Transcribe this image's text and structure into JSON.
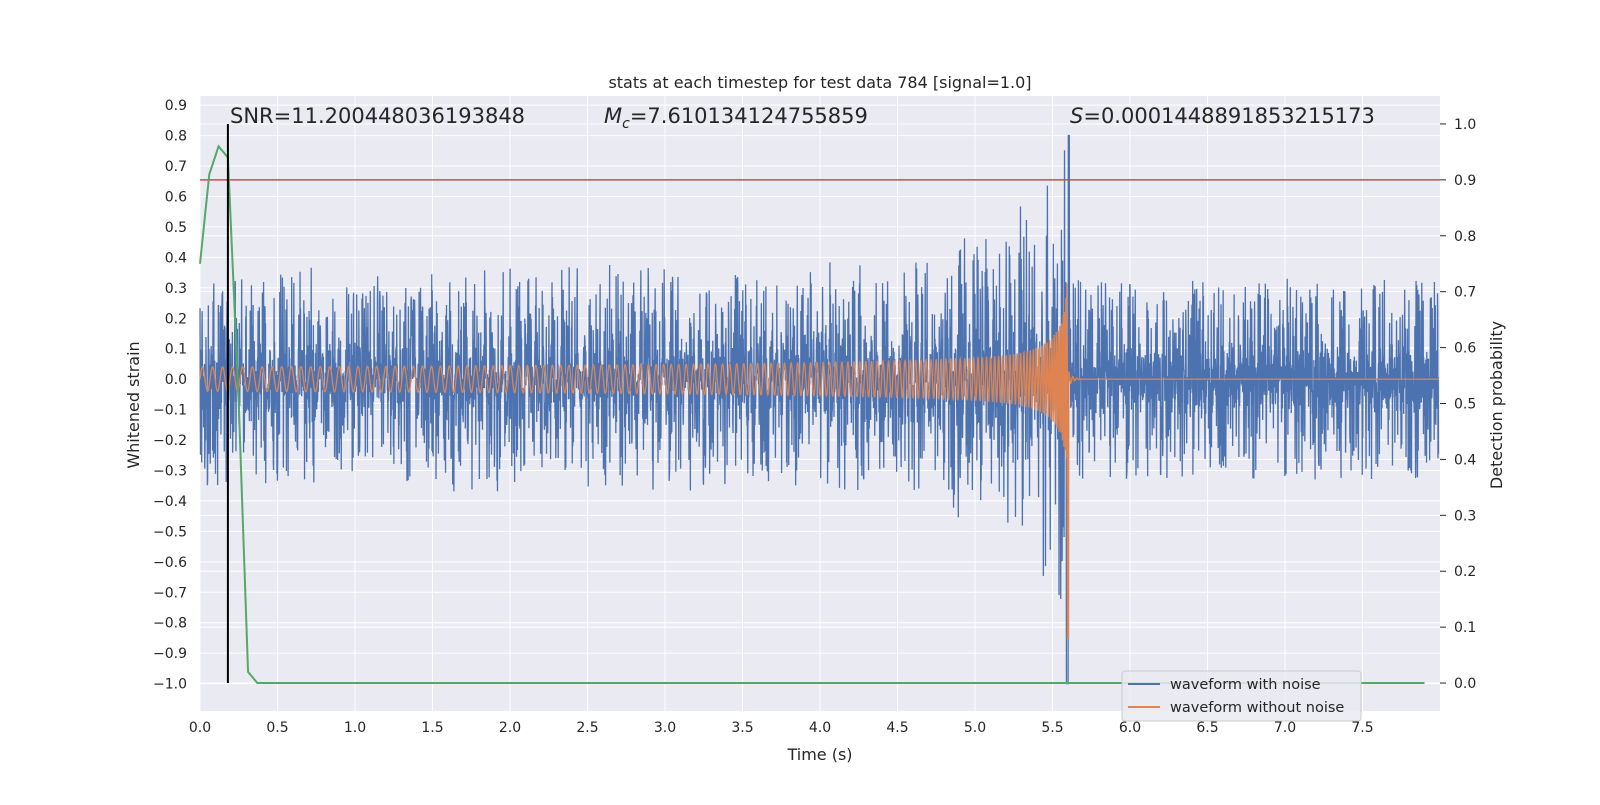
{
  "chart_data": {
    "type": "line",
    "title": "stats at each timestep for test data 784 [signal=1.0]",
    "xlabel": "Time (s)",
    "ylabel": "Whitened strain",
    "ylabel_right": "Detection probability",
    "xlim": [
      0.0,
      8.0
    ],
    "ylim": [
      -1.09,
      0.93
    ],
    "ylim_right": [
      -0.05,
      1.05
    ],
    "x_ticks": [
      "0.0",
      "0.5",
      "1.0",
      "1.5",
      "2.0",
      "2.5",
      "3.0",
      "3.5",
      "4.0",
      "4.5",
      "5.0",
      "5.5",
      "6.0",
      "6.5",
      "7.0",
      "7.5"
    ],
    "x_tick_values": [
      0.0,
      0.5,
      1.0,
      1.5,
      2.0,
      2.5,
      3.0,
      3.5,
      4.0,
      4.5,
      5.0,
      5.5,
      6.0,
      6.5,
      7.0,
      7.5
    ],
    "y_ticks": [
      "0.9",
      "0.8",
      "0.7",
      "0.6",
      "0.5",
      "0.4",
      "0.3",
      "0.2",
      "0.1",
      "0.0",
      "−0.1",
      "−0.2",
      "−0.3",
      "−0.4",
      "−0.5",
      "−0.6",
      "−0.7",
      "−0.8",
      "−0.9",
      "−1.0"
    ],
    "y_tick_values": [
      0.9,
      0.8,
      0.7,
      0.6,
      0.5,
      0.4,
      0.3,
      0.2,
      0.1,
      0.0,
      -0.1,
      -0.2,
      -0.3,
      -0.4,
      -0.5,
      -0.6,
      -0.7,
      -0.8,
      -0.9,
      -1.0
    ],
    "y_right_ticks": [
      "1.0",
      "0.9",
      "0.8",
      "0.7",
      "0.6",
      "0.5",
      "0.4",
      "0.3",
      "0.2",
      "0.1",
      "0.0"
    ],
    "y_right_tick_values": [
      1.0,
      0.9,
      0.8,
      0.7,
      0.6,
      0.5,
      0.4,
      0.3,
      0.2,
      0.1,
      0.0
    ],
    "grid": true,
    "legend_position": "lower right",
    "series": [
      {
        "name": "waveform with noise",
        "color": "#4c72b0",
        "description_envelope": {
          "noise_amplitude": 0.33,
          "peak_time": 5.6,
          "peak_max": 0.8,
          "peak_min": -1.0
        }
      },
      {
        "name": "waveform without noise",
        "color": "#dd8452",
        "chirp": {
          "start_amplitude": 0.04,
          "merger_time": 5.6,
          "merger_max": 0.84,
          "merger_min": -0.85
        }
      },
      {
        "name": "",
        "color": "#55a868",
        "axis": "right",
        "x": [
          0.0,
          0.06,
          0.12,
          0.18,
          0.25,
          0.31,
          0.37,
          0.5,
          1.0,
          2.0,
          3.0,
          4.0,
          5.0,
          6.0,
          7.0,
          7.9
        ],
        "y": [
          0.75,
          0.91,
          0.96,
          0.94,
          0.5,
          0.02,
          0.0,
          0.0,
          0.0,
          0.0,
          0.0,
          0.0,
          0.0,
          0.0,
          0.0,
          0.0
        ]
      }
    ],
    "threshold_line": {
      "axis": "right",
      "value": 0.9,
      "color": "#c44e52"
    },
    "vertical_line": {
      "x": 0.18,
      "color": "#000000"
    },
    "annotations": {
      "snr": "SNR=11.200448036193848",
      "mc_symbol": "M",
      "mc_sub": "c",
      "mc_value": "=7.610134124755859",
      "s_symbol": "S",
      "s_value": "=0.0001448891853215173"
    },
    "colors": {
      "background": "#eaeaf2",
      "grid": "#ffffff"
    }
  }
}
